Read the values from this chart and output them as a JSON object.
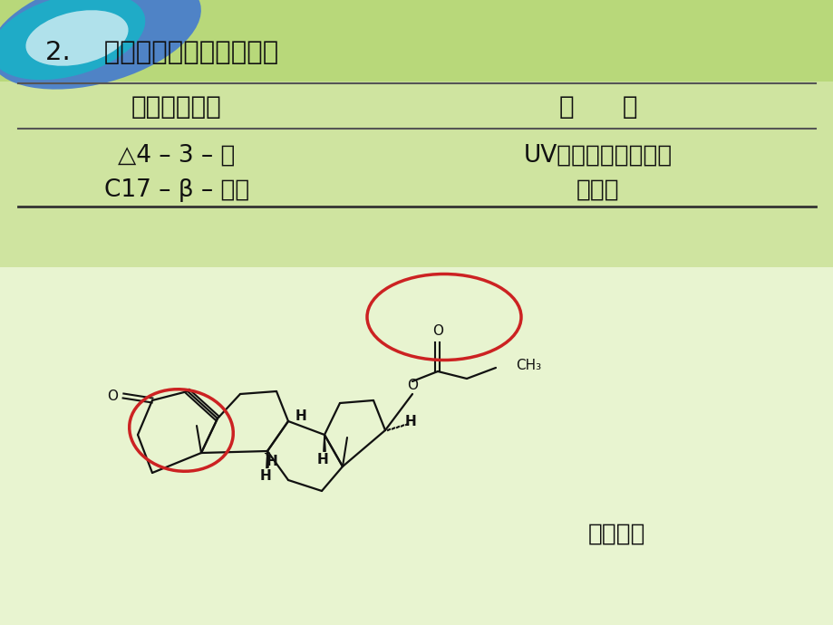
{
  "title": "2.    雄性激素及蛋白同化激素",
  "header_col1": "主要活性基团",
  "header_col2": "性      质",
  "row1_col1": "△4 – 3 – 酮",
  "row1_col2": "UV、与羰基试剂反应",
  "row2_col1": "C17 – β – 羟基",
  "row2_col2": "可成酯",
  "label_bottom": "丙酸睾酮",
  "circle_color": "#cc2222",
  "bond_color": "#111111",
  "text_color": "#111111",
  "font_size_title": 21,
  "font_size_header": 20,
  "font_size_row": 19,
  "font_size_label": 19,
  "font_size_chem": 11
}
